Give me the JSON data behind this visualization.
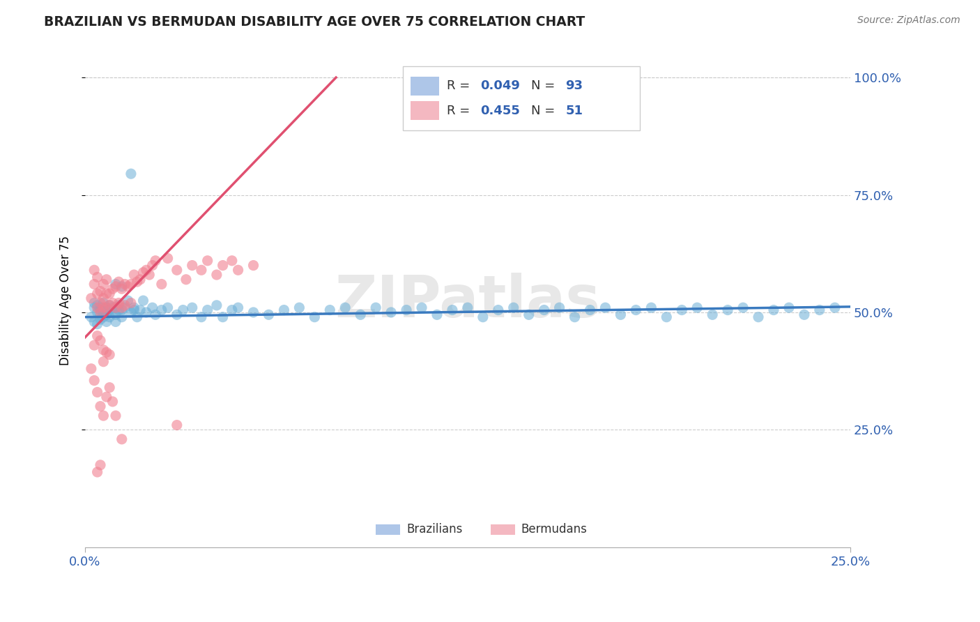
{
  "title": "BRAZILIAN VS BERMUDAN DISABILITY AGE OVER 75 CORRELATION CHART",
  "source_text": "Source: ZipAtlas.com",
  "ylabel": "Disability Age Over 75",
  "xlim": [
    0.0,
    0.25
  ],
  "ylim": [
    0.0,
    1.05
  ],
  "ytick_labels": [
    "25.0%",
    "50.0%",
    "75.0%",
    "100.0%"
  ],
  "ytick_positions": [
    0.25,
    0.5,
    0.75,
    1.0
  ],
  "watermark": "ZIPatlas",
  "brazil_color": "#6aaed6",
  "bermuda_color": "#f08090",
  "brazil_trend_color": "#3a7abf",
  "bermuda_trend_color": "#e05070",
  "brazil_scatter_x": [
    0.002,
    0.003,
    0.003,
    0.003,
    0.004,
    0.004,
    0.004,
    0.005,
    0.005,
    0.005,
    0.005,
    0.006,
    0.006,
    0.006,
    0.007,
    0.007,
    0.007,
    0.008,
    0.008,
    0.008,
    0.009,
    0.009,
    0.01,
    0.01,
    0.01,
    0.011,
    0.011,
    0.012,
    0.012,
    0.013,
    0.015,
    0.015,
    0.016,
    0.017,
    0.018,
    0.02,
    0.022,
    0.023,
    0.025,
    0.027,
    0.03,
    0.032,
    0.035,
    0.038,
    0.04,
    0.043,
    0.045,
    0.048,
    0.05,
    0.055,
    0.06,
    0.065,
    0.07,
    0.075,
    0.08,
    0.085,
    0.09,
    0.095,
    0.1,
    0.105,
    0.11,
    0.115,
    0.12,
    0.125,
    0.13,
    0.135,
    0.14,
    0.145,
    0.15,
    0.155,
    0.16,
    0.165,
    0.17,
    0.175,
    0.18,
    0.185,
    0.19,
    0.195,
    0.2,
    0.205,
    0.21,
    0.215,
    0.22,
    0.225,
    0.23,
    0.235,
    0.24,
    0.245,
    0.01,
    0.012,
    0.014,
    0.016,
    0.019
  ],
  "brazil_scatter_y": [
    0.49,
    0.51,
    0.48,
    0.52,
    0.5,
    0.515,
    0.475,
    0.505,
    0.495,
    0.51,
    0.485,
    0.5,
    0.52,
    0.49,
    0.51,
    0.495,
    0.48,
    0.505,
    0.515,
    0.49,
    0.5,
    0.51,
    0.495,
    0.51,
    0.48,
    0.505,
    0.515,
    0.49,
    0.505,
    0.51,
    0.795,
    0.5,
    0.51,
    0.49,
    0.505,
    0.5,
    0.51,
    0.495,
    0.505,
    0.51,
    0.495,
    0.505,
    0.51,
    0.49,
    0.505,
    0.515,
    0.49,
    0.505,
    0.51,
    0.5,
    0.495,
    0.505,
    0.51,
    0.49,
    0.505,
    0.51,
    0.495,
    0.51,
    0.5,
    0.505,
    0.51,
    0.495,
    0.505,
    0.51,
    0.49,
    0.505,
    0.51,
    0.495,
    0.505,
    0.51,
    0.49,
    0.505,
    0.51,
    0.495,
    0.505,
    0.51,
    0.49,
    0.505,
    0.51,
    0.495,
    0.505,
    0.51,
    0.49,
    0.505,
    0.51,
    0.495,
    0.505,
    0.51,
    0.56,
    0.555,
    0.525,
    0.505,
    0.525
  ],
  "bermuda_scatter_x": [
    0.002,
    0.003,
    0.003,
    0.004,
    0.004,
    0.004,
    0.005,
    0.005,
    0.005,
    0.006,
    0.006,
    0.006,
    0.007,
    0.007,
    0.007,
    0.008,
    0.008,
    0.009,
    0.009,
    0.01,
    0.01,
    0.011,
    0.011,
    0.012,
    0.012,
    0.013,
    0.013,
    0.014,
    0.015,
    0.015,
    0.016,
    0.017,
    0.018,
    0.019,
    0.02,
    0.021,
    0.022,
    0.023,
    0.025,
    0.027,
    0.03,
    0.033,
    0.035,
    0.038,
    0.04,
    0.043,
    0.045,
    0.048,
    0.05,
    0.055,
    0.004
  ],
  "bermuda_scatter_y": [
    0.53,
    0.56,
    0.59,
    0.54,
    0.51,
    0.575,
    0.52,
    0.545,
    0.5,
    0.53,
    0.56,
    0.51,
    0.54,
    0.57,
    0.51,
    0.54,
    0.515,
    0.55,
    0.52,
    0.555,
    0.51,
    0.565,
    0.52,
    0.55,
    0.51,
    0.56,
    0.515,
    0.555,
    0.56,
    0.52,
    0.58,
    0.565,
    0.57,
    0.585,
    0.59,
    0.58,
    0.6,
    0.61,
    0.56,
    0.615,
    0.59,
    0.57,
    0.6,
    0.59,
    0.61,
    0.58,
    0.6,
    0.61,
    0.59,
    0.6,
    0.16
  ],
  "bermuda_extra_low": [
    [
      0.002,
      0.38
    ],
    [
      0.003,
      0.43
    ],
    [
      0.004,
      0.45
    ],
    [
      0.005,
      0.44
    ],
    [
      0.006,
      0.42
    ],
    [
      0.006,
      0.395
    ],
    [
      0.007,
      0.415
    ],
    [
      0.008,
      0.41
    ],
    [
      0.003,
      0.355
    ],
    [
      0.004,
      0.33
    ],
    [
      0.005,
      0.3
    ],
    [
      0.006,
      0.28
    ],
    [
      0.007,
      0.32
    ],
    [
      0.008,
      0.34
    ],
    [
      0.009,
      0.31
    ],
    [
      0.01,
      0.28
    ],
    [
      0.012,
      0.23
    ],
    [
      0.03,
      0.26
    ],
    [
      0.005,
      0.175
    ]
  ],
  "brazil_trend_x": [
    0.0,
    0.25
  ],
  "brazil_trend_y": [
    0.49,
    0.512
  ],
  "bermuda_trend_x": [
    -0.001,
    0.082
  ],
  "bermuda_trend_y": [
    0.44,
    1.0
  ]
}
